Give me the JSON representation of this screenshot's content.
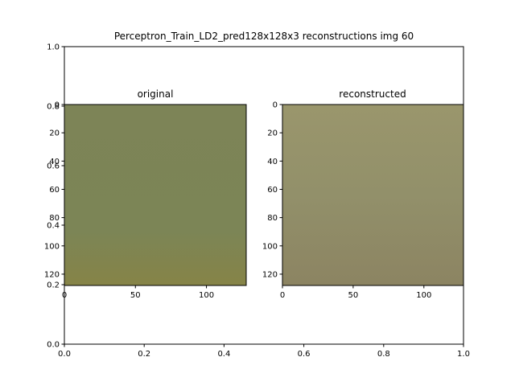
{
  "figure_title": "Perceptron_Train_LD2_pred128x128x3 reconstructions img 60",
  "chart_data": [
    {
      "type": "axes",
      "role": "background-axes",
      "xlim": [
        0.0,
        1.0
      ],
      "ylim": [
        0.0,
        1.0
      ],
      "xticks": [
        0.0,
        0.2,
        0.4,
        0.6,
        0.8,
        1.0
      ],
      "xtick_labels": [
        "0.0",
        "0.2",
        "0.4",
        "0.6",
        "0.8",
        "1.0"
      ],
      "yticks": [
        0.0,
        0.2,
        0.4,
        0.6,
        0.8,
        1.0
      ],
      "ytick_labels": [
        "0.0",
        "0.2",
        "0.4",
        "0.6",
        "0.8",
        "1.0"
      ]
    },
    {
      "type": "heatmap",
      "title": "original",
      "xlim": [
        0,
        128
      ],
      "ylim": [
        128,
        0
      ],
      "xticks": [
        0,
        50,
        100
      ],
      "xtick_labels": [
        "0",
        "50",
        "100"
      ],
      "yticks": [
        0,
        20,
        40,
        60,
        80,
        100,
        120
      ],
      "ytick_labels": [
        "0",
        "20",
        "40",
        "60",
        "80",
        "100",
        "120"
      ],
      "colors": {
        "top": "#7d8457",
        "mid": "#7c8556",
        "bottom": "#868447"
      }
    },
    {
      "type": "heatmap",
      "title": "reconstructed",
      "xlim": [
        0,
        128
      ],
      "ylim": [
        128,
        0
      ],
      "xticks": [
        0,
        50,
        100
      ],
      "xtick_labels": [
        "0",
        "50",
        "100"
      ],
      "yticks": [
        0,
        20,
        40,
        60,
        80,
        100,
        120
      ],
      "ytick_labels": [
        "0",
        "20",
        "40",
        "60",
        "80",
        "100",
        "120"
      ],
      "colors": {
        "top": "#9a966c",
        "mid": "#92906a",
        "bottom": "#8c8462"
      }
    }
  ]
}
